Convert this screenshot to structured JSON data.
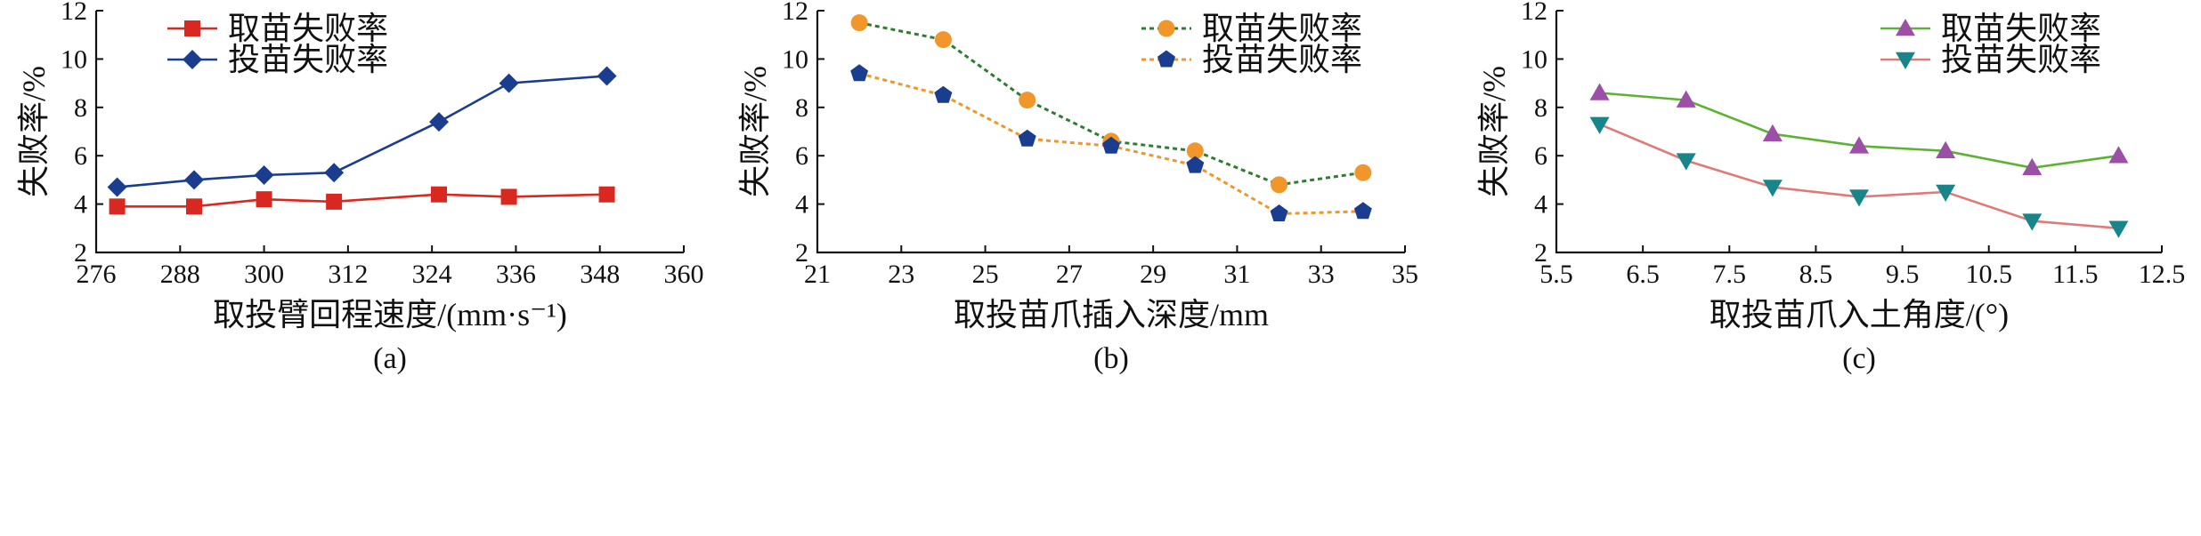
{
  "chart_data": [
    {
      "type": "line",
      "panel_label": "(a)",
      "xlabel": "取投臂回程速度/(mm·s⁻¹)",
      "ylabel": "失败率/%",
      "xlim": [
        276,
        360
      ],
      "ylim": [
        2,
        12
      ],
      "xticks": [
        276,
        288,
        300,
        312,
        324,
        336,
        348,
        360
      ],
      "yticks": [
        2,
        4,
        6,
        8,
        10,
        12
      ],
      "xtick_labels": [
        "276",
        "288",
        "300",
        "312",
        "324",
        "336",
        "348",
        "360"
      ],
      "ytick_labels": [
        "2",
        "4",
        "6",
        "8",
        "10",
        "12"
      ],
      "grid": false,
      "legend_position": "top-left",
      "series": [
        {
          "name": "取苗失败率",
          "marker": "square",
          "color": "#d9281f",
          "dash": "solid",
          "x": [
            279,
            290,
            300,
            310,
            325,
            335,
            349
          ],
          "y": [
            3.9,
            3.9,
            4.2,
            4.1,
            4.4,
            4.3,
            4.4
          ]
        },
        {
          "name": "投苗失败率",
          "marker": "diamond",
          "color": "#1b3d8f",
          "dash": "solid",
          "x": [
            279,
            290,
            300,
            310,
            325,
            335,
            349
          ],
          "y": [
            4.7,
            5.0,
            5.2,
            5.3,
            7.4,
            9.0,
            9.3
          ]
        }
      ]
    },
    {
      "type": "line",
      "panel_label": "(b)",
      "xlabel": "取投苗爪插入深度/mm",
      "ylabel": "失败率/%",
      "xlim": [
        21,
        35
      ],
      "ylim": [
        2,
        12
      ],
      "xticks": [
        21,
        23,
        25,
        27,
        29,
        31,
        33,
        35
      ],
      "yticks": [
        2,
        4,
        6,
        8,
        10,
        12
      ],
      "xtick_labels": [
        "21",
        "23",
        "25",
        "27",
        "29",
        "31",
        "33",
        "35"
      ],
      "ytick_labels": [
        "2",
        "4",
        "6",
        "8",
        "10",
        "12"
      ],
      "grid": false,
      "legend_position": "top-right",
      "series": [
        {
          "name": "取苗失败率",
          "marker": "circle",
          "color": "#2e7d32",
          "marker_color": "#f0962a",
          "dash": "dotted",
          "x": [
            22,
            24,
            26,
            28,
            30,
            32,
            34
          ],
          "y": [
            11.5,
            10.8,
            8.3,
            6.6,
            6.2,
            4.8,
            5.3
          ]
        },
        {
          "name": "投苗失败率",
          "marker": "pentagon",
          "color": "#f0962a",
          "marker_color": "#1b3d8f",
          "dash": "dotted",
          "x": [
            22,
            24,
            26,
            28,
            30,
            32,
            34
          ],
          "y": [
            9.4,
            8.5,
            6.7,
            6.4,
            5.6,
            3.6,
            3.7
          ]
        }
      ]
    },
    {
      "type": "line",
      "panel_label": "(c)",
      "xlabel": "取投苗爪入土角度/(°)",
      "ylabel": "失败率/%",
      "xlim": [
        5.5,
        12.5
      ],
      "ylim": [
        2,
        12
      ],
      "xticks": [
        5.5,
        6.5,
        7.5,
        8.5,
        9.5,
        10.5,
        11.5,
        12.5
      ],
      "yticks": [
        2,
        4,
        6,
        8,
        10,
        12
      ],
      "xtick_labels": [
        "5.5",
        "6.5",
        "7.5",
        "8.5",
        "9.5",
        "10.5",
        "11.5",
        "12.5"
      ],
      "ytick_labels": [
        "2",
        "4",
        "6",
        "8",
        "10",
        "12"
      ],
      "grid": false,
      "legend_position": "top-right",
      "series": [
        {
          "name": "取苗失败率",
          "marker": "triangle-up",
          "color": "#5cb233",
          "marker_color": "#9b4fa7",
          "dash": "solid",
          "x": [
            6,
            7,
            8,
            9,
            10,
            11,
            12
          ],
          "y": [
            8.6,
            8.3,
            6.9,
            6.4,
            6.2,
            5.5,
            6.0
          ]
        },
        {
          "name": "投苗失败率",
          "marker": "triangle-down",
          "color": "#e07a76",
          "marker_color": "#17858a",
          "dash": "solid",
          "x": [
            6,
            7,
            8,
            9,
            10,
            11,
            12
          ],
          "y": [
            7.3,
            5.8,
            4.7,
            4.3,
            4.5,
            3.3,
            3.0
          ]
        }
      ]
    }
  ]
}
